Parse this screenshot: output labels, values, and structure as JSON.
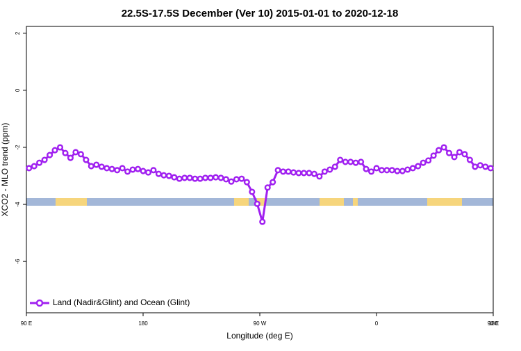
{
  "chart_data": {
    "type": "line",
    "title": "22.5S-17.5S December (Ver 10)   2015-01-01 to 2020-12-18",
    "x_label": "Longitude (deg E)",
    "y_label": "XCO2 - MLO trend (ppm)",
    "xlim": [
      90,
      450
    ],
    "xticks": [
      {
        "value": 90,
        "label": "90 E"
      },
      180,
      {
        "value": 270,
        "label": "90 W"
      },
      {
        "value": 360,
        "label": "0"
      },
      {
        "value": 450,
        "label": "90 E"
      },
      {
        "value": 540,
        "label": "180"
      }
    ],
    "ylim": [
      -7.8,
      2.24
    ],
    "yticks": [
      2,
      0,
      -2,
      -4,
      -6
    ],
    "legend": "bottom-left",
    "x": [
      92,
      96,
      100,
      104,
      108,
      112,
      116,
      120,
      124,
      128,
      132,
      136,
      140,
      144,
      148,
      152,
      156,
      160,
      164,
      168,
      172,
      176,
      180,
      184,
      188,
      192,
      196,
      200,
      204,
      208,
      212,
      216,
      220,
      224,
      228,
      232,
      236,
      240,
      244,
      248,
      252,
      256,
      260,
      264,
      268,
      272,
      276,
      280,
      284,
      288,
      292,
      296,
      300,
      304,
      308,
      312,
      316,
      320,
      324,
      328,
      332,
      336,
      340,
      344,
      348,
      352,
      356,
      360,
      364,
      368,
      372,
      376,
      380,
      384,
      388,
      392,
      396,
      400,
      404,
      408,
      412,
      416,
      420,
      424,
      428,
      432,
      436,
      440,
      444,
      448
    ],
    "series": [
      {
        "name": "Land (Nadir&Glint) and Ocean (Glint)",
        "color": "#a020f0",
        "values": [
          -2.73,
          -2.66,
          -2.54,
          -2.44,
          -2.27,
          -2.1,
          -2.0,
          -2.2,
          -2.37,
          -2.17,
          -2.24,
          -2.44,
          -2.66,
          -2.61,
          -2.68,
          -2.73,
          -2.76,
          -2.8,
          -2.73,
          -2.85,
          -2.78,
          -2.76,
          -2.83,
          -2.88,
          -2.8,
          -2.93,
          -2.98,
          -3.0,
          -3.05,
          -3.1,
          -3.07,
          -3.07,
          -3.1,
          -3.1,
          -3.07,
          -3.07,
          -3.05,
          -3.07,
          -3.12,
          -3.2,
          -3.12,
          -3.1,
          -3.22,
          -3.56,
          -3.98,
          -4.61,
          -3.41,
          -3.22,
          -2.8,
          -2.85,
          -2.85,
          -2.88,
          -2.9,
          -2.9,
          -2.9,
          -2.93,
          -3.02,
          -2.85,
          -2.78,
          -2.68,
          -2.44,
          -2.51,
          -2.51,
          -2.54,
          -2.51,
          -2.76,
          -2.85,
          -2.73,
          -2.8,
          -2.8,
          -2.8,
          -2.83,
          -2.83,
          -2.78,
          -2.73,
          -2.66,
          -2.54,
          -2.46,
          -2.29,
          -2.1,
          -2.0,
          -2.2,
          -2.34,
          -2.17,
          -2.24,
          -2.44,
          -2.68,
          -2.63,
          -2.68,
          -2.73
        ]
      }
    ]
  }
}
